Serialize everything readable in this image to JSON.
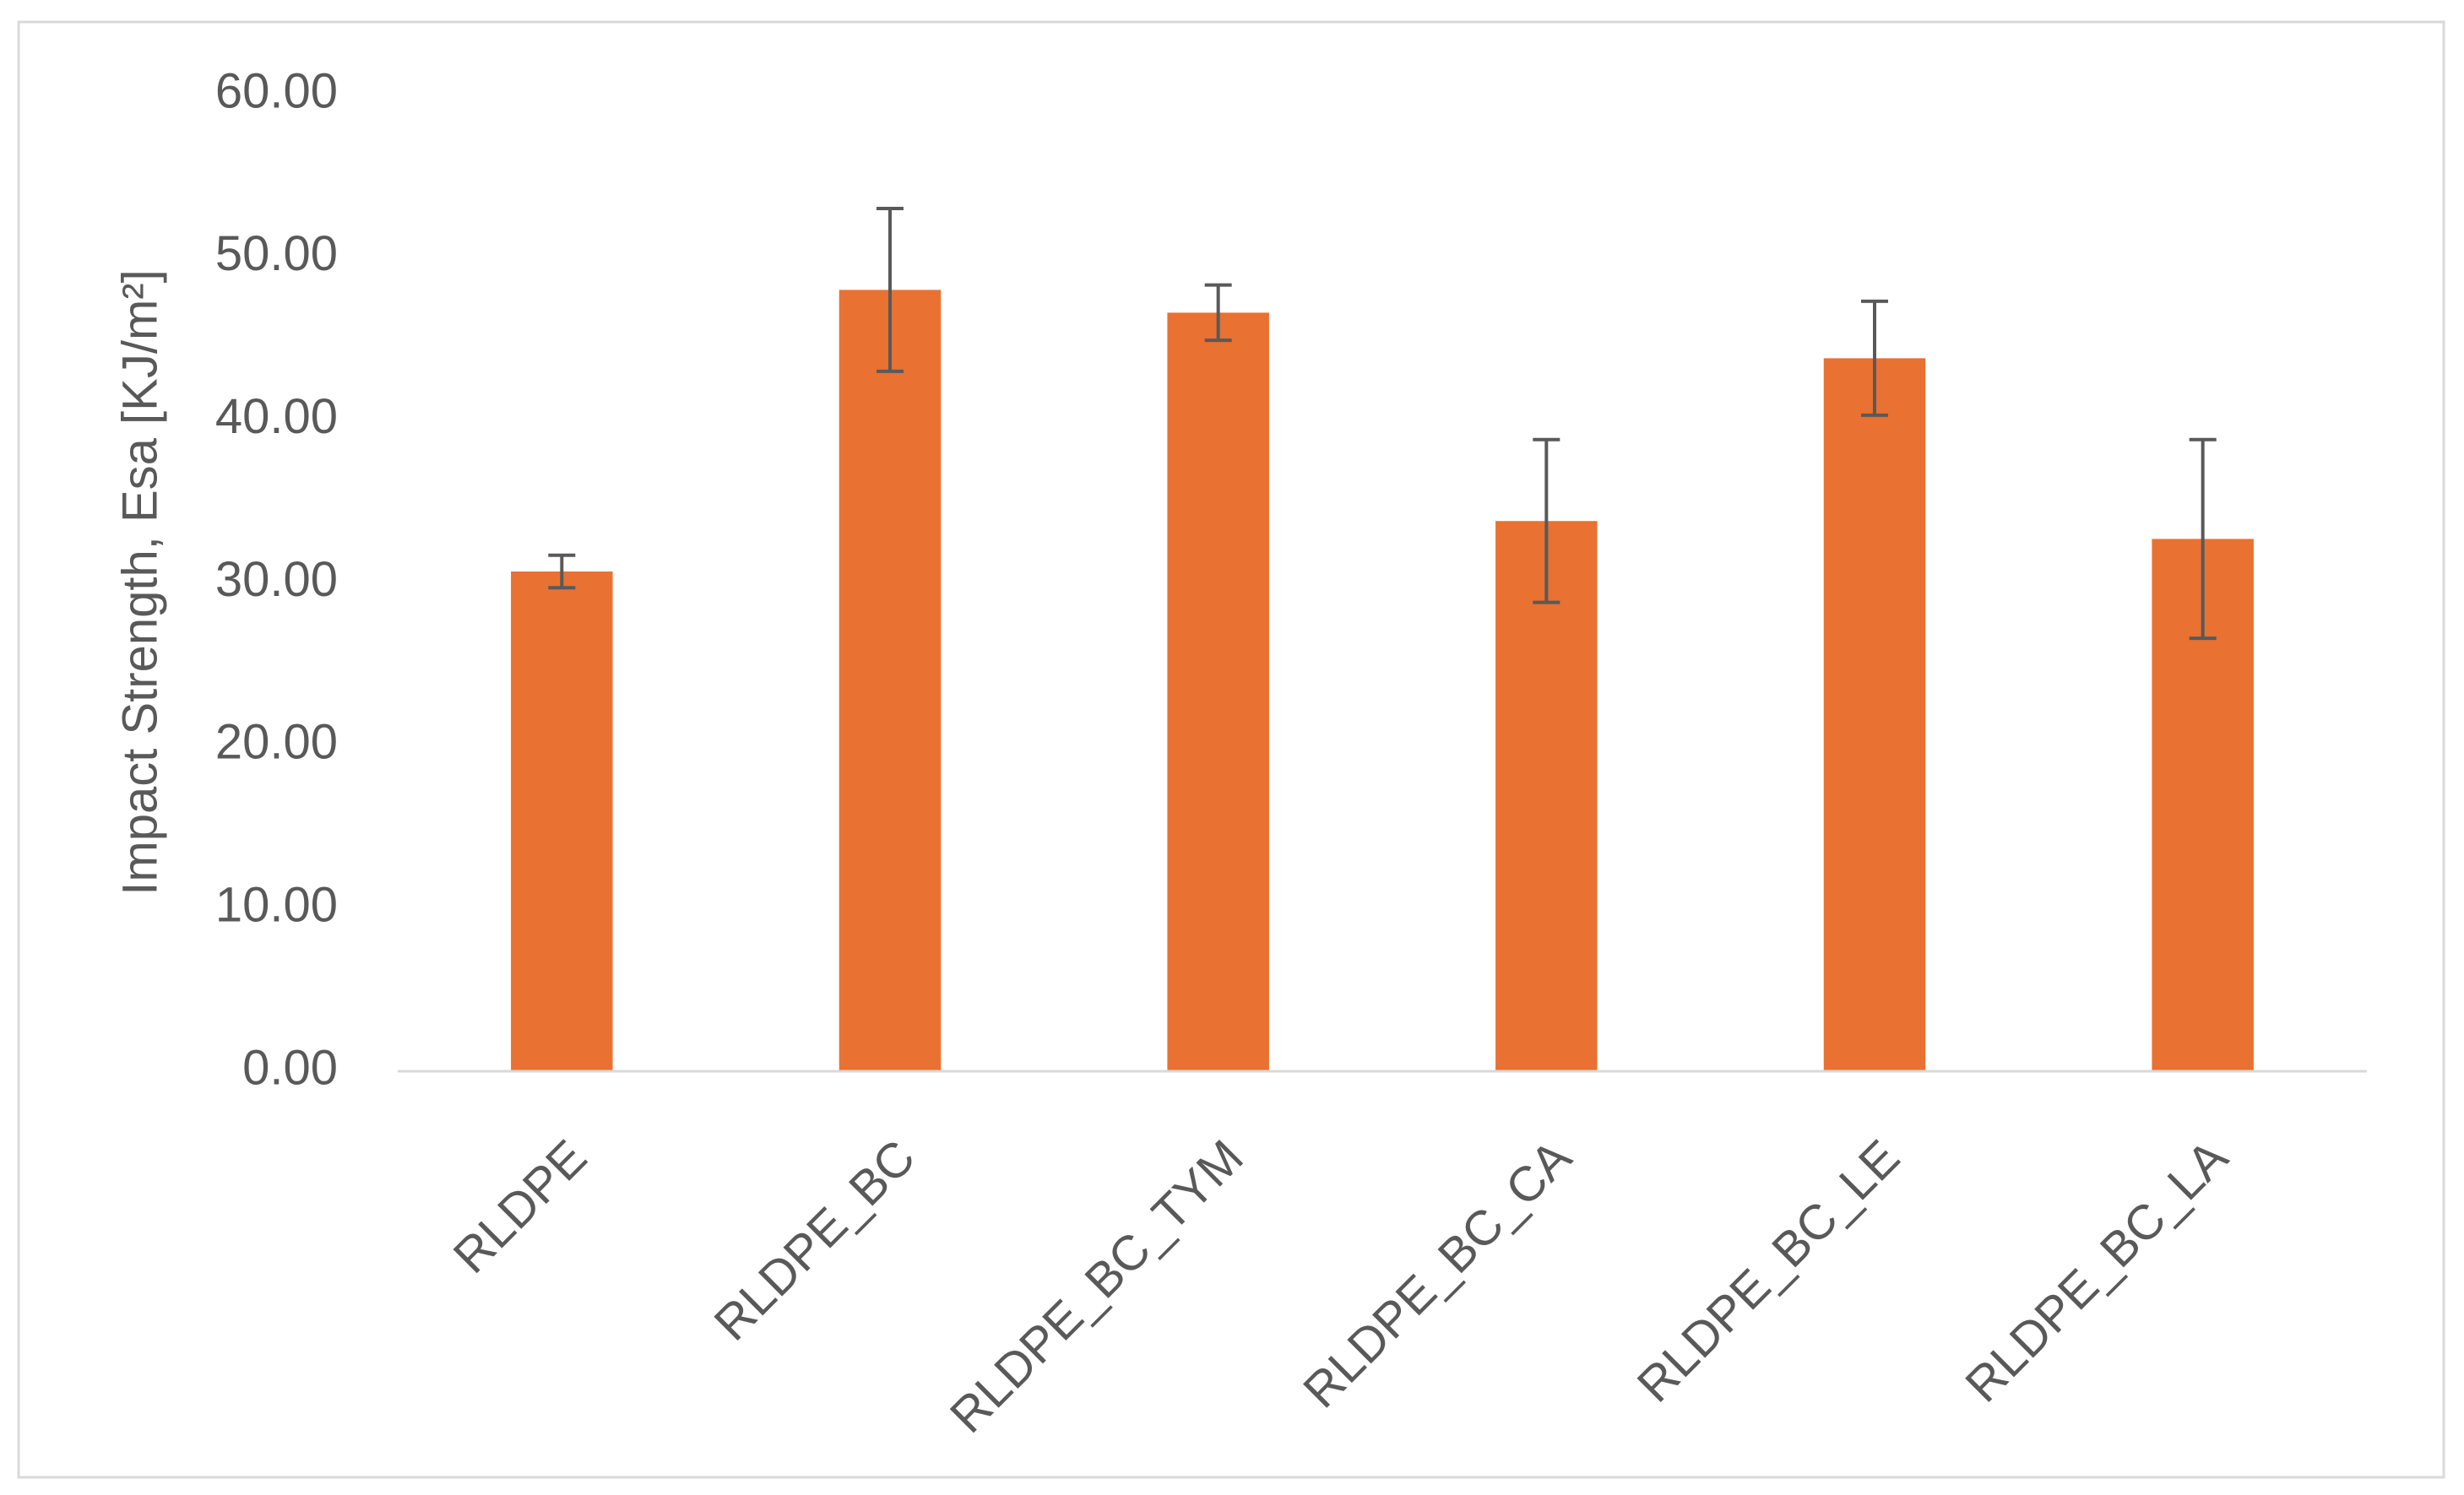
{
  "chart_data": {
    "type": "bar",
    "y_label": "Impact Strength, Esa [KJ/m²]",
    "categories": [
      "RLDPE",
      "RLDPE_BC",
      "RLDPE_BC_TYM",
      "RLDPE_BC_CA",
      "RLDPE_BC_LE",
      "RLDPE_BC_LA"
    ],
    "values": [
      30.7,
      48.0,
      46.6,
      33.8,
      43.8,
      32.7
    ],
    "errors": [
      1.0,
      5.0,
      1.7,
      5.0,
      3.5,
      6.1
    ],
    "color": "#e97132",
    "ylim": [
      0,
      60
    ],
    "yticks": [
      {
        "value": 0,
        "label": "0.00"
      },
      {
        "value": 10,
        "label": "10.00"
      },
      {
        "value": 20,
        "label": "20.00"
      },
      {
        "value": 30,
        "label": "30.00"
      },
      {
        "value": 40,
        "label": "40.00"
      },
      {
        "value": 50,
        "label": "50.00"
      },
      {
        "value": 60,
        "label": "60.00"
      }
    ],
    "grid": false
  }
}
